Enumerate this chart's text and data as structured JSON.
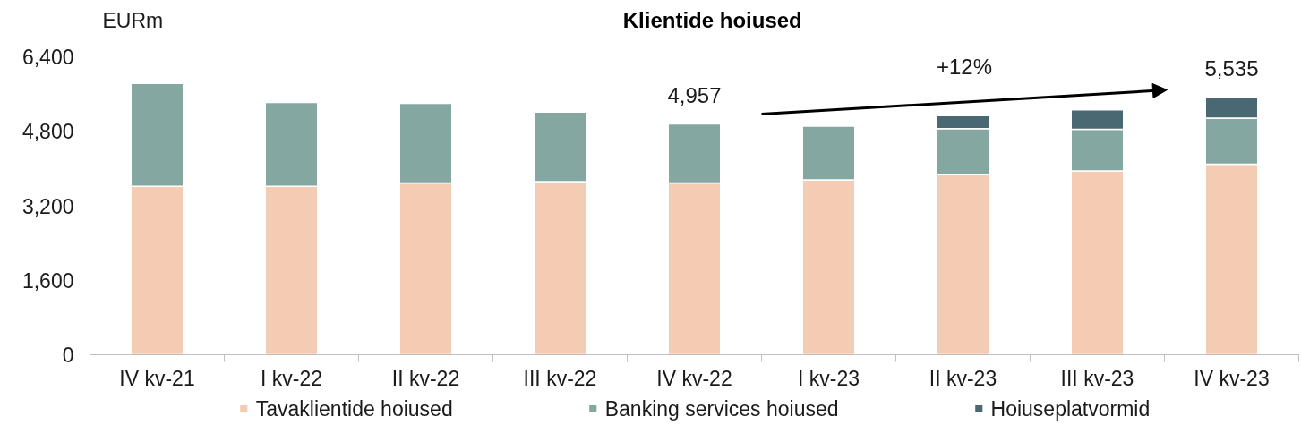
{
  "chart_data": {
    "type": "bar",
    "title": "Klientide hoiused",
    "ylabel": "EURm",
    "categories": [
      "IV kv-21",
      "I kv-22",
      "II kv-22",
      "III kv-22",
      "IV kv-22",
      "I kv-23",
      "II kv-23",
      "III kv-23",
      "IV kv-23"
    ],
    "series": [
      {
        "name": "Tavaklientide hoiused",
        "color": "#f4cbb3",
        "values": [
          3620,
          3620,
          3690,
          3720,
          3690,
          3755,
          3870,
          3950,
          4095
        ]
      },
      {
        "name": "Banking services hoiused",
        "color": "#84a7a2",
        "values": [
          2210,
          1800,
          1710,
          1495,
          1267,
          1155,
          990,
          895,
          990
        ]
      },
      {
        "name": "Hoiuseplatvormid",
        "color": "#4a6872",
        "values": [
          null,
          null,
          null,
          null,
          null,
          null,
          275,
          415,
          450
        ]
      }
    ],
    "stacked": true,
    "ylim": [
      0,
      6400
    ],
    "yticks": [
      0,
      {
        "value": 1600,
        "label": "1,600"
      },
      {
        "value": 3200,
        "label": "3,200"
      },
      {
        "value": 4800,
        "label": "4,800"
      },
      {
        "value": 6400,
        "label": "6,400"
      }
    ],
    "totals": [
      null,
      null,
      null,
      null,
      "4,957",
      null,
      null,
      null,
      "5,535"
    ],
    "annotations": [
      "+12%"
    ],
    "legend": "bottom"
  }
}
